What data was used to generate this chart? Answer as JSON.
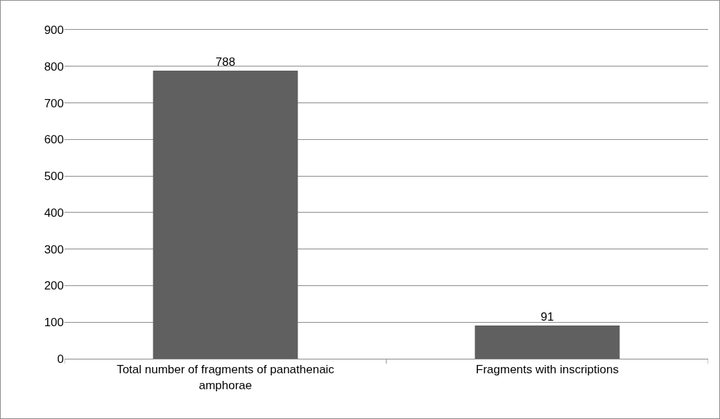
{
  "chart_data": {
    "type": "bar",
    "categories": [
      "Total number of fragments of panathenaic amphorae",
      "Fragments with inscriptions"
    ],
    "values": [
      788,
      91
    ],
    "color": "#606060",
    "ylim": [
      0,
      900
    ],
    "yticks": [
      0,
      100,
      200,
      300,
      400,
      500,
      600,
      700,
      800,
      900
    ],
    "grid": "y",
    "data_labels": true
  }
}
